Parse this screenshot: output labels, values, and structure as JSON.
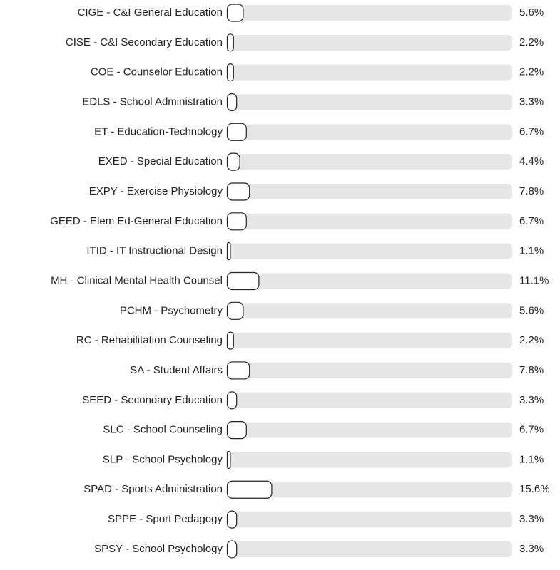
{
  "chart_data": {
    "type": "bar",
    "orientation": "horizontal",
    "categories": [
      "CIGE - C&I General Education",
      "CISE - C&I Secondary Education",
      "COE - Counselor Education",
      "EDLS - School Administration",
      "ET - Education-Technology",
      "EXED - Special Education",
      "EXPY - Exercise Physiology",
      "GEED - Elem Ed-General Education",
      "ITID - IT Instructional Design",
      "MH - Clinical Mental Health Counsel",
      "PCHM - Psychometry",
      "RC - Rehabilitation Counseling",
      "SA - Student Affairs",
      "SEED - Secondary Education",
      "SLC - School Counseling",
      "SLP - School Psychology",
      "SPAD - Sports Administration",
      "SPPE - Sport Pedagogy",
      "SPSY - School Psychology"
    ],
    "values": [
      5.6,
      2.2,
      2.2,
      3.3,
      6.7,
      4.4,
      7.8,
      6.7,
      1.1,
      11.1,
      5.6,
      2.2,
      7.8,
      3.3,
      6.7,
      1.1,
      15.6,
      3.3,
      3.3
    ],
    "value_labels": [
      "5.6%",
      "2.2%",
      "2.2%",
      "3.3%",
      "6.7%",
      "4.4%",
      "7.8%",
      "6.7%",
      "1.1%",
      "11.1%",
      "5.6%",
      "2.2%",
      "7.8%",
      "3.3%",
      "6.7%",
      "1.1%",
      "15.6%",
      "3.3%",
      "3.3%"
    ],
    "xlim": [
      0,
      100
    ],
    "color": "#ffffff",
    "track_color": "#e6e6e6"
  }
}
